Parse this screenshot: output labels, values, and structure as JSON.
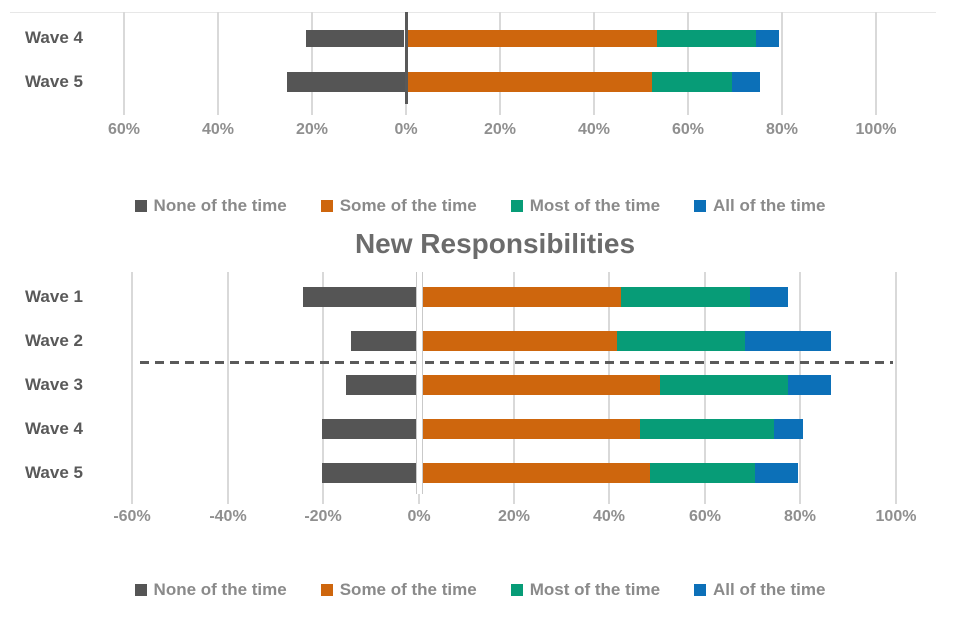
{
  "title": {
    "text": "New Responsibilities"
  },
  "colors": {
    "none": "#555555",
    "some": "#CE660D",
    "most": "#079C77",
    "all": "#0C70B8",
    "gridline": "#D9D9D9",
    "zero_axis_top": "#595959",
    "axis_label": "#8F8F8F",
    "category_label": "#595959",
    "legend_text": "#8A8A8A",
    "title_text": "#6B6B6B",
    "dashed_line": "#5A5A5A",
    "highlight_band": "#FFFFFF"
  },
  "legend_top": {
    "items": [
      {
        "label": "None of the time",
        "color_key": "none"
      },
      {
        "label": "Some of the time",
        "color_key": "some"
      },
      {
        "label": "Most of the time",
        "color_key": "most"
      },
      {
        "label": "All of the time",
        "color_key": "all"
      }
    ]
  },
  "legend_bottom": {
    "items": [
      {
        "label": "None of the time",
        "color_key": "none"
      },
      {
        "label": "Some of the time",
        "color_key": "some"
      },
      {
        "label": "Most of the time",
        "color_key": "most"
      },
      {
        "label": "All of the time",
        "color_key": "all"
      }
    ]
  },
  "chart_data": [
    {
      "id": "top",
      "type": "bar",
      "subtype": "diverging-stacked-horizontal",
      "categories": [
        "Wave 4",
        "Wave 5"
      ],
      "series": [
        {
          "name": "None of the time",
          "direction": "negative",
          "values": [
            21,
            25
          ]
        },
        {
          "name": "Some of the time",
          "direction": "positive",
          "values": [
            53,
            52
          ]
        },
        {
          "name": "Most of the time",
          "direction": "positive",
          "values": [
            21,
            17
          ]
        },
        {
          "name": "All of the time",
          "direction": "positive",
          "values": [
            5,
            6
          ]
        }
      ],
      "x_tick_labels": [
        "60%",
        "40%",
        "20%",
        "0%",
        "20%",
        "40%",
        "60%",
        "80%",
        "100%"
      ],
      "x_tick_values": [
        -60,
        -40,
        -20,
        0,
        20,
        40,
        60,
        80,
        100
      ],
      "highlighted_category": "Wave 4",
      "grid": true,
      "note_layout": "chart cropped at top of image; only last two rows visible"
    },
    {
      "id": "bottom",
      "type": "bar",
      "subtype": "diverging-stacked-horizontal",
      "title": "New Responsibilities",
      "categories": [
        "Wave 1",
        "Wave 2",
        "Wave 3",
        "Wave 4",
        "Wave 5"
      ],
      "series": [
        {
          "name": "None of the time",
          "direction": "negative",
          "values": [
            24,
            14,
            15,
            20,
            20
          ]
        },
        {
          "name": "Some of the time",
          "direction": "positive",
          "values": [
            42,
            41,
            50,
            46,
            48
          ]
        },
        {
          "name": "Most of the time",
          "direction": "positive",
          "values": [
            27,
            27,
            27,
            28,
            22
          ]
        },
        {
          "name": "All of the time",
          "direction": "positive",
          "values": [
            8,
            18,
            9,
            6,
            9
          ]
        }
      ],
      "x_tick_labels": [
        "-60%",
        "-40%",
        "-20%",
        "0%",
        "20%",
        "40%",
        "60%",
        "80%",
        "100%"
      ],
      "x_tick_values": [
        -60,
        -40,
        -20,
        0,
        20,
        40,
        60,
        80,
        100
      ],
      "dashed_separator_after": "Wave 2",
      "grid": true
    }
  ]
}
